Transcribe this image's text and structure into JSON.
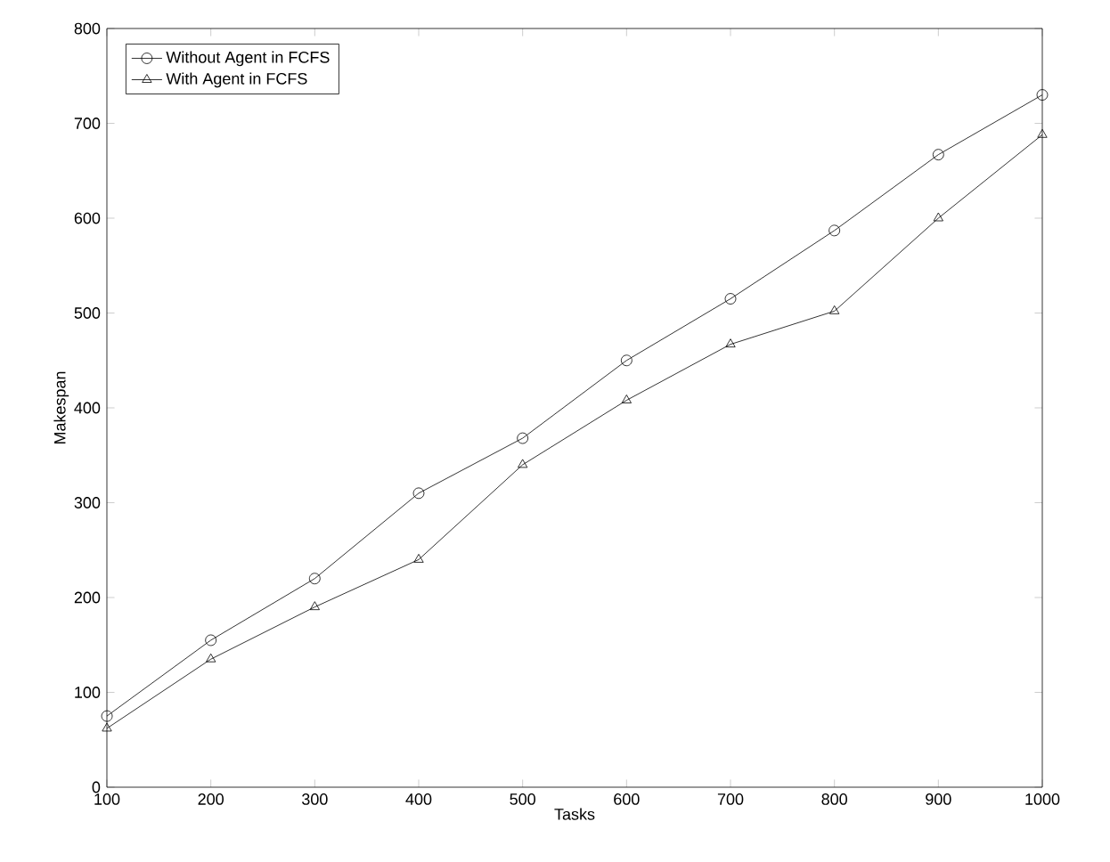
{
  "chart_data": {
    "type": "line",
    "xlabel": "Tasks",
    "ylabel": "Makespan",
    "x": [
      100,
      200,
      300,
      400,
      500,
      600,
      700,
      800,
      900,
      1000
    ],
    "series": [
      {
        "name": "Without Agent in FCFS",
        "color": "#000000",
        "marker": "circle",
        "values": [
          75,
          155,
          220,
          310,
          368,
          450,
          515,
          587,
          667,
          730
        ]
      },
      {
        "name": "With Agent in FCFS",
        "color": "#000000",
        "marker": "triangle",
        "values": [
          62,
          135,
          190,
          240,
          340,
          408,
          467,
          502,
          600,
          688
        ]
      }
    ],
    "xlim": [
      100,
      1000
    ],
    "ylim": [
      0,
      800
    ],
    "xticks": [
      100,
      200,
      300,
      400,
      500,
      600,
      700,
      800,
      900,
      1000
    ],
    "yticks": [
      0,
      100,
      200,
      300,
      400,
      500,
      600,
      700,
      800
    ],
    "legend": "top left",
    "grid": false,
    "line_style": "solid"
  }
}
